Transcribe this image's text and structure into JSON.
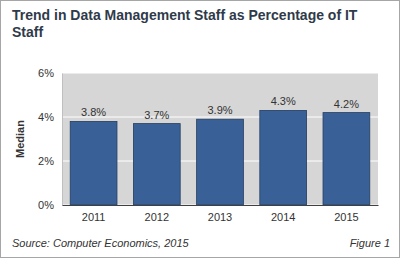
{
  "chart_data": {
    "type": "bar",
    "title": "Trend in Data Management Staff as Percentage of IT Staff",
    "y_label": "Median",
    "categories": [
      "2011",
      "2012",
      "2013",
      "2014",
      "2015"
    ],
    "values": [
      3.8,
      3.7,
      3.9,
      4.3,
      4.2
    ],
    "value_labels": [
      "3.8%",
      "3.7%",
      "3.9%",
      "4.3%",
      "4.2%"
    ],
    "data_labels": true,
    "color": "#3a6197",
    "ylim": [
      0,
      6
    ],
    "yticks": [
      {
        "value": 0,
        "label": "0%"
      },
      {
        "value": 2,
        "label": "2%"
      },
      {
        "value": 4,
        "label": "4%"
      },
      {
        "value": 6,
        "label": "6%"
      }
    ],
    "grid": true,
    "annotations": [
      "Source: Computer Economics, 2015",
      "Figure 1"
    ]
  }
}
